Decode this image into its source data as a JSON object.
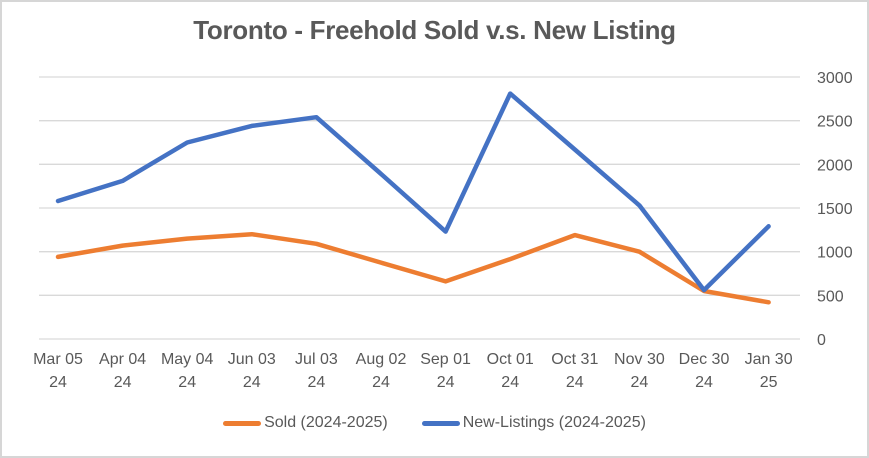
{
  "chart_data": {
    "type": "line",
    "title": "Toronto - Freehold Sold v.s. New Listing",
    "categories": [
      "Mar 05 24",
      "Apr 04 24",
      "May 04 24",
      "Jun 03 24",
      "Jul 03 24",
      "Aug 02 24",
      "Sep 01 24",
      "Oct 01 24",
      "Oct 31 24",
      "Nov 30 24",
      "Dec 30 24",
      "Jan 30 25"
    ],
    "series": [
      {
        "name": "Sold (2024-2025)",
        "color": "#ED7D31",
        "values": [
          940,
          1070,
          1150,
          1200,
          1090,
          875,
          660,
          915,
          1190,
          1000,
          550,
          420
        ]
      },
      {
        "name": "New-Listings (2024-2025)",
        "color": "#4472C4",
        "values": [
          1580,
          1810,
          2250,
          2440,
          2540,
          1890,
          1230,
          2810,
          2170,
          1530,
          560,
          1290
        ]
      }
    ],
    "y_axis": {
      "min": 0,
      "max": 3000,
      "step": 500,
      "side": "right",
      "tick_labels": [
        "3000",
        "2500",
        "2000",
        "1500",
        "1000",
        "500",
        "0"
      ]
    },
    "x_axis": {
      "label_line_1": [
        "Mar 05",
        "Apr 04",
        "May 04",
        "Jun 03",
        "Jul 03",
        "Aug 02",
        "Sep 01",
        "Oct 01",
        "Oct 31",
        "Nov 30",
        "Dec 30",
        "Jan 30"
      ],
      "label_line_2": [
        "24",
        "24",
        "24",
        "24",
        "24",
        "24",
        "24",
        "24",
        "24",
        "24",
        "24",
        "25"
      ]
    },
    "grid": true,
    "legend_position": "bottom",
    "colors": {
      "grid": "#D9D9D9",
      "text": "#595959",
      "title": "#595959",
      "border": "#D6D6D6",
      "background": "#FFFFFF"
    }
  }
}
